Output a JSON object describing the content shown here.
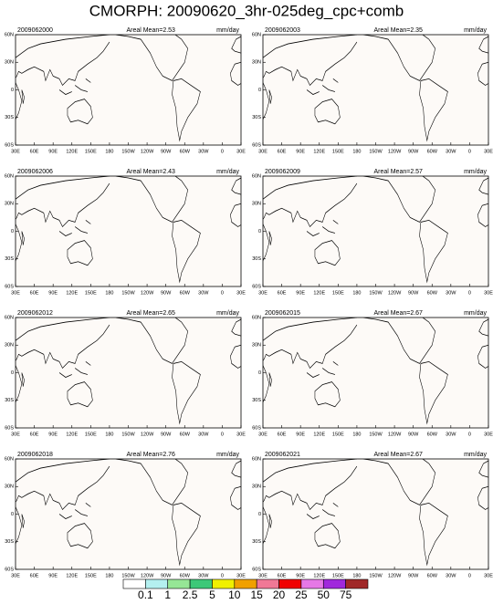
{
  "title": "CMORPH: 20090620_3hr-025deg_cpc+comb",
  "unit": "mm/day",
  "lat_labels": [
    "60N",
    "30N",
    "0",
    "30S",
    "60S"
  ],
  "lon_labels": [
    "30E",
    "60E",
    "90E",
    "120E",
    "150E",
    "180",
    "150W",
    "120W",
    "90W",
    "60W",
    "30W",
    "0",
    "30E"
  ],
  "panels": [
    {
      "time": "2009062000",
      "areal_mean": "Areal Mean=2.53"
    },
    {
      "time": "2009062003",
      "areal_mean": "Areal Mean=2.35"
    },
    {
      "time": "2009062006",
      "areal_mean": "Areal Mean=2.43"
    },
    {
      "time": "2009062009",
      "areal_mean": "Areal Mean=2.57"
    },
    {
      "time": "2009062012",
      "areal_mean": "Areal Mean=2.65"
    },
    {
      "time": "2009062015",
      "areal_mean": "Areal Mean=2.67"
    },
    {
      "time": "2009062018",
      "areal_mean": "Areal Mean=2.76"
    },
    {
      "time": "2009062021",
      "areal_mean": "Areal Mean=2.67"
    }
  ],
  "colorbar": {
    "levels": [
      0.1,
      1,
      2.5,
      5,
      10,
      15,
      20,
      25,
      50,
      75
    ],
    "colors": [
      "#ffffff",
      "#b4f0f0",
      "#96e696",
      "#3cc878",
      "#f0f000",
      "#f0a000",
      "#f07896",
      "#f00000",
      "#e678e6",
      "#a028dc",
      "#a02828"
    ]
  }
}
